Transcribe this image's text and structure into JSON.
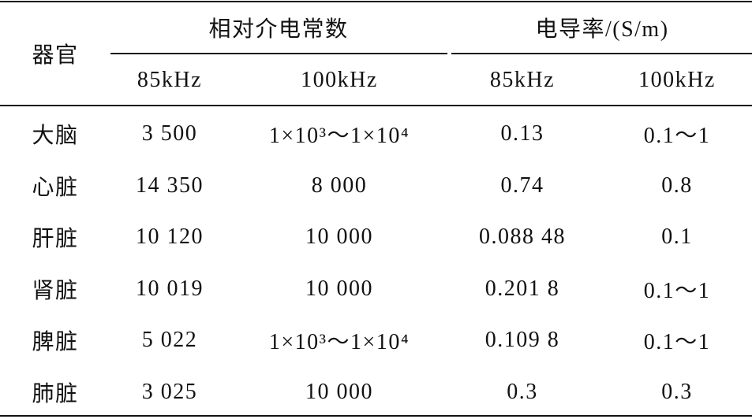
{
  "table": {
    "header": {
      "organ": "器官",
      "groups": [
        "相对介电常数",
        "电导率/(S/m)"
      ],
      "subheaders": [
        "85kHz",
        "100kHz",
        "85kHz",
        "100kHz"
      ]
    },
    "rows": [
      [
        "大脑",
        "3 500",
        "1×10³～1×10⁴",
        "0.13",
        "0.1～1"
      ],
      [
        "心脏",
        "14 350",
        "8 000",
        "0.74",
        "0.8"
      ],
      [
        "肝脏",
        "10 120",
        "10 000",
        "0.088 48",
        "0.1"
      ],
      [
        "肾脏",
        "10 019",
        "10 000",
        "0.201 8",
        "0.1～1"
      ],
      [
        "脾脏",
        "5 022",
        "1×10³～1×10⁴",
        "0.109 8",
        "0.1～1"
      ],
      [
        "肺脏",
        "3 025",
        "10 000",
        "0.3",
        "0.3"
      ]
    ]
  }
}
